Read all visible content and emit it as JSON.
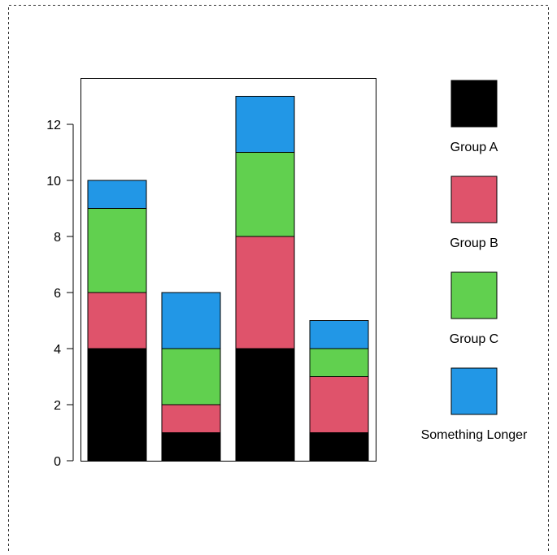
{
  "chart_data": {
    "type": "bar",
    "stacked": true,
    "categories": [
      "",
      "",
      "",
      ""
    ],
    "series": [
      {
        "name": "Group A",
        "color": "#000000",
        "values": [
          4,
          1,
          4,
          1
        ]
      },
      {
        "name": "Group B",
        "color": "#df536b",
        "values": [
          2,
          1,
          4,
          2
        ]
      },
      {
        "name": "Group C",
        "color": "#61d04f",
        "values": [
          3,
          2,
          3,
          1
        ]
      },
      {
        "name": "Something Longer",
        "color": "#2297e6",
        "values": [
          1,
          2,
          2,
          1
        ]
      }
    ],
    "title": "",
    "xlabel": "",
    "ylabel": "",
    "ylim": [
      0,
      13
    ],
    "yticks": [
      "0",
      "2",
      "4",
      "6",
      "8",
      "10",
      "12"
    ],
    "grid": false,
    "legend_position": "right"
  }
}
